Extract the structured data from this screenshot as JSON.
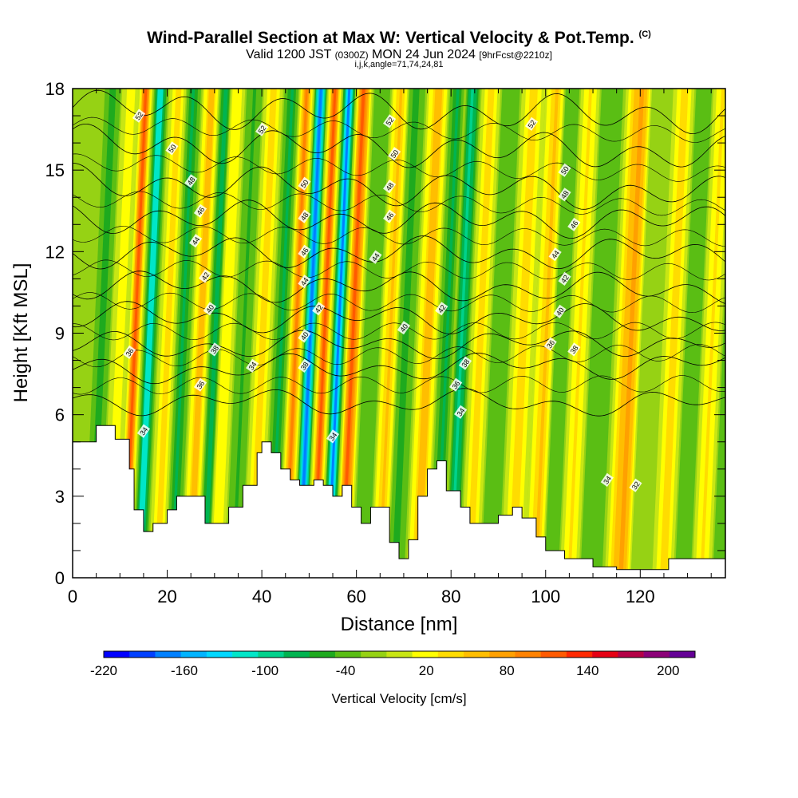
{
  "header": {
    "title_main": "Wind-Parallel Section at Max W: Vertical Velocity & Pot.Temp.",
    "title_mark": "(C)",
    "valid_prefix": "Valid 1200 JST",
    "valid_zulu": "(0300Z)",
    "valid_date": "MON 24 Jun 2024",
    "valid_fcst": "[9hrFcst@2210z]",
    "subtitle": "i,j,k,angle=71,74,24,81"
  },
  "chart_data": {
    "type": "heatmap",
    "xlabel": "Distance [nm]",
    "ylabel": "Height [Kft MSL]",
    "xlim": [
      0,
      138
    ],
    "ylim": [
      0,
      18
    ],
    "x_ticks": [
      0,
      20,
      40,
      60,
      80,
      100,
      120
    ],
    "y_ticks": [
      0,
      3,
      6,
      9,
      12,
      15,
      18
    ],
    "grid": false,
    "colorbar": {
      "label": "Vertical Velocity [cm/s]",
      "tick_labels": [
        "-220",
        "-160",
        "-100",
        "-40",
        "20",
        "80",
        "140",
        "200"
      ],
      "bounds": [
        -220,
        220
      ],
      "step": 20,
      "colors": [
        "#0000ff",
        "#0040ff",
        "#0080ff",
        "#00b4ff",
        "#00d8ff",
        "#00e6c8",
        "#00d28c",
        "#00b450",
        "#1eaa1e",
        "#5abe14",
        "#96d214",
        "#c8e614",
        "#ffff00",
        "#ffdc00",
        "#ffbe00",
        "#ffa000",
        "#ff8200",
        "#ff5a00",
        "#ff2800",
        "#e60014",
        "#b40046",
        "#8c0078",
        "#640096"
      ]
    },
    "velocity_cores": [
      {
        "x": 4,
        "w": -55
      },
      {
        "x": 8,
        "w": 30
      },
      {
        "x": 11,
        "w": 150
      },
      {
        "x": 14,
        "w": -140
      },
      {
        "x": 18,
        "w": 60
      },
      {
        "x": 21,
        "w": -70
      },
      {
        "x": 25,
        "w": 90
      },
      {
        "x": 28,
        "w": -90
      },
      {
        "x": 30,
        "w": 45
      },
      {
        "x": 34,
        "w": -45
      },
      {
        "x": 38,
        "w": 60
      },
      {
        "x": 42,
        "w": -80
      },
      {
        "x": 45,
        "w": 130
      },
      {
        "x": 48,
        "w": -210
      },
      {
        "x": 51,
        "w": 150
      },
      {
        "x": 54,
        "w": -190
      },
      {
        "x": 57,
        "w": 160
      },
      {
        "x": 61,
        "w": -40
      },
      {
        "x": 65,
        "w": 75
      },
      {
        "x": 68,
        "w": -60
      },
      {
        "x": 73,
        "w": 90
      },
      {
        "x": 77,
        "w": -70
      },
      {
        "x": 80,
        "w": -110
      },
      {
        "x": 84,
        "w": 60
      },
      {
        "x": 88,
        "w": -40
      },
      {
        "x": 93,
        "w": 55
      },
      {
        "x": 98,
        "w": 75
      },
      {
        "x": 101,
        "w": -30
      },
      {
        "x": 105,
        "w": 50
      },
      {
        "x": 109,
        "w": -35
      },
      {
        "x": 116,
        "w": 110
      },
      {
        "x": 120,
        "w": -20
      },
      {
        "x": 125,
        "w": 60
      },
      {
        "x": 129,
        "w": -25
      },
      {
        "x": 133,
        "w": 50
      },
      {
        "x": 137,
        "w": -30
      }
    ],
    "terrain_kft": [
      [
        0,
        5.0
      ],
      [
        5,
        5.6
      ],
      [
        9,
        5.1
      ],
      [
        12,
        4.0
      ],
      [
        13,
        2.5
      ],
      [
        15,
        1.7
      ],
      [
        17,
        2.0
      ],
      [
        20,
        2.5
      ],
      [
        22,
        3.0
      ],
      [
        25,
        3.0
      ],
      [
        28,
        2.0
      ],
      [
        30,
        2.0
      ],
      [
        33,
        2.6
      ],
      [
        36,
        3.4
      ],
      [
        39,
        4.6
      ],
      [
        40,
        5.0
      ],
      [
        42,
        4.6
      ],
      [
        44,
        4.0
      ],
      [
        46,
        3.6
      ],
      [
        48,
        3.4
      ],
      [
        51,
        3.6
      ],
      [
        53,
        3.4
      ],
      [
        55,
        3.0
      ],
      [
        57,
        3.4
      ],
      [
        59,
        2.6
      ],
      [
        61,
        2.0
      ],
      [
        63,
        2.6
      ],
      [
        65,
        2.6
      ],
      [
        67,
        1.3
      ],
      [
        69,
        0.7
      ],
      [
        71,
        1.4
      ],
      [
        73,
        3.0
      ],
      [
        75,
        4.0
      ],
      [
        77,
        4.3
      ],
      [
        79,
        3.2
      ],
      [
        82,
        2.6
      ],
      [
        84,
        2.0
      ],
      [
        87,
        2.0
      ],
      [
        90,
        2.3
      ],
      [
        93,
        2.6
      ],
      [
        95,
        2.2
      ],
      [
        98,
        1.5
      ],
      [
        100,
        1.0
      ],
      [
        104,
        0.7
      ],
      [
        108,
        0.7
      ],
      [
        110,
        0.4
      ],
      [
        115,
        0.3
      ],
      [
        124,
        0.3
      ],
      [
        126,
        0.7
      ],
      [
        138,
        0.7
      ]
    ],
    "isentropes": [
      {
        "level": 52,
        "z0": 17.3,
        "z1": 17.0
      },
      {
        "level": 50,
        "z0": 16.0,
        "z1": 15.6
      },
      {
        "level": 48,
        "z0": 14.6,
        "z1": 14.1
      },
      {
        "level": 46,
        "z0": 13.3,
        "z1": 13.1
      },
      {
        "level": 44,
        "z0": 12.0,
        "z1": 11.9
      },
      {
        "level": 42,
        "z0": 10.8,
        "z1": 10.6
      },
      {
        "level": 40,
        "z0": 9.6,
        "z1": 9.5
      },
      {
        "level": 38,
        "z0": 8.5,
        "z1": 8.7
      },
      {
        "level": 36,
        "z0": 7.6,
        "z1": 7.9
      },
      {
        "level": 34,
        "z0": 6.5,
        "z1": 6.4
      }
    ],
    "contour_labels": [
      {
        "text": "52",
        "x": 14,
        "y": 17.0
      },
      {
        "text": "52",
        "x": 40,
        "y": 16.5
      },
      {
        "text": "52",
        "x": 67,
        "y": 16.8
      },
      {
        "text": "52",
        "x": 97,
        "y": 16.7
      },
      {
        "text": "50",
        "x": 21,
        "y": 15.8
      },
      {
        "text": "50",
        "x": 49,
        "y": 14.5
      },
      {
        "text": "50",
        "x": 68,
        "y": 15.6
      },
      {
        "text": "50",
        "x": 104,
        "y": 15.0
      },
      {
        "text": "48",
        "x": 25,
        "y": 14.6
      },
      {
        "text": "48",
        "x": 49,
        "y": 13.3
      },
      {
        "text": "48",
        "x": 67,
        "y": 14.4
      },
      {
        "text": "48",
        "x": 104,
        "y": 14.1
      },
      {
        "text": "46",
        "x": 27,
        "y": 13.5
      },
      {
        "text": "46",
        "x": 49,
        "y": 12.0
      },
      {
        "text": "46",
        "x": 67,
        "y": 13.3
      },
      {
        "text": "46",
        "x": 106,
        "y": 13.0
      },
      {
        "text": "44",
        "x": 26,
        "y": 12.4
      },
      {
        "text": "44",
        "x": 49,
        "y": 10.9
      },
      {
        "text": "44",
        "x": 64,
        "y": 11.8
      },
      {
        "text": "44",
        "x": 102,
        "y": 11.9
      },
      {
        "text": "42",
        "x": 28,
        "y": 11.1
      },
      {
        "text": "42",
        "x": 52,
        "y": 9.9
      },
      {
        "text": "42",
        "x": 78,
        "y": 9.9
      },
      {
        "text": "42",
        "x": 104,
        "y": 11.0
      },
      {
        "text": "40",
        "x": 29,
        "y": 9.9
      },
      {
        "text": "40",
        "x": 49,
        "y": 8.9
      },
      {
        "text": "40",
        "x": 70,
        "y": 9.2
      },
      {
        "text": "40",
        "x": 103,
        "y": 9.8
      },
      {
        "text": "38",
        "x": 30,
        "y": 8.4
      },
      {
        "text": "38",
        "x": 49,
        "y": 7.8
      },
      {
        "text": "38",
        "x": 83,
        "y": 7.9
      },
      {
        "text": "38",
        "x": 106,
        "y": 8.4
      },
      {
        "text": "36",
        "x": 12,
        "y": 8.3
      },
      {
        "text": "36",
        "x": 27,
        "y": 7.1
      },
      {
        "text": "36",
        "x": 81,
        "y": 7.1
      },
      {
        "text": "36",
        "x": 101,
        "y": 8.6
      },
      {
        "text": "34",
        "x": 15,
        "y": 5.4
      },
      {
        "text": "34",
        "x": 38,
        "y": 7.8
      },
      {
        "text": "34",
        "x": 55,
        "y": 5.2
      },
      {
        "text": "34",
        "x": 82,
        "y": 6.1
      },
      {
        "text": "34",
        "x": 113,
        "y": 3.6
      },
      {
        "text": "32",
        "x": 119,
        "y": 3.4
      }
    ]
  }
}
